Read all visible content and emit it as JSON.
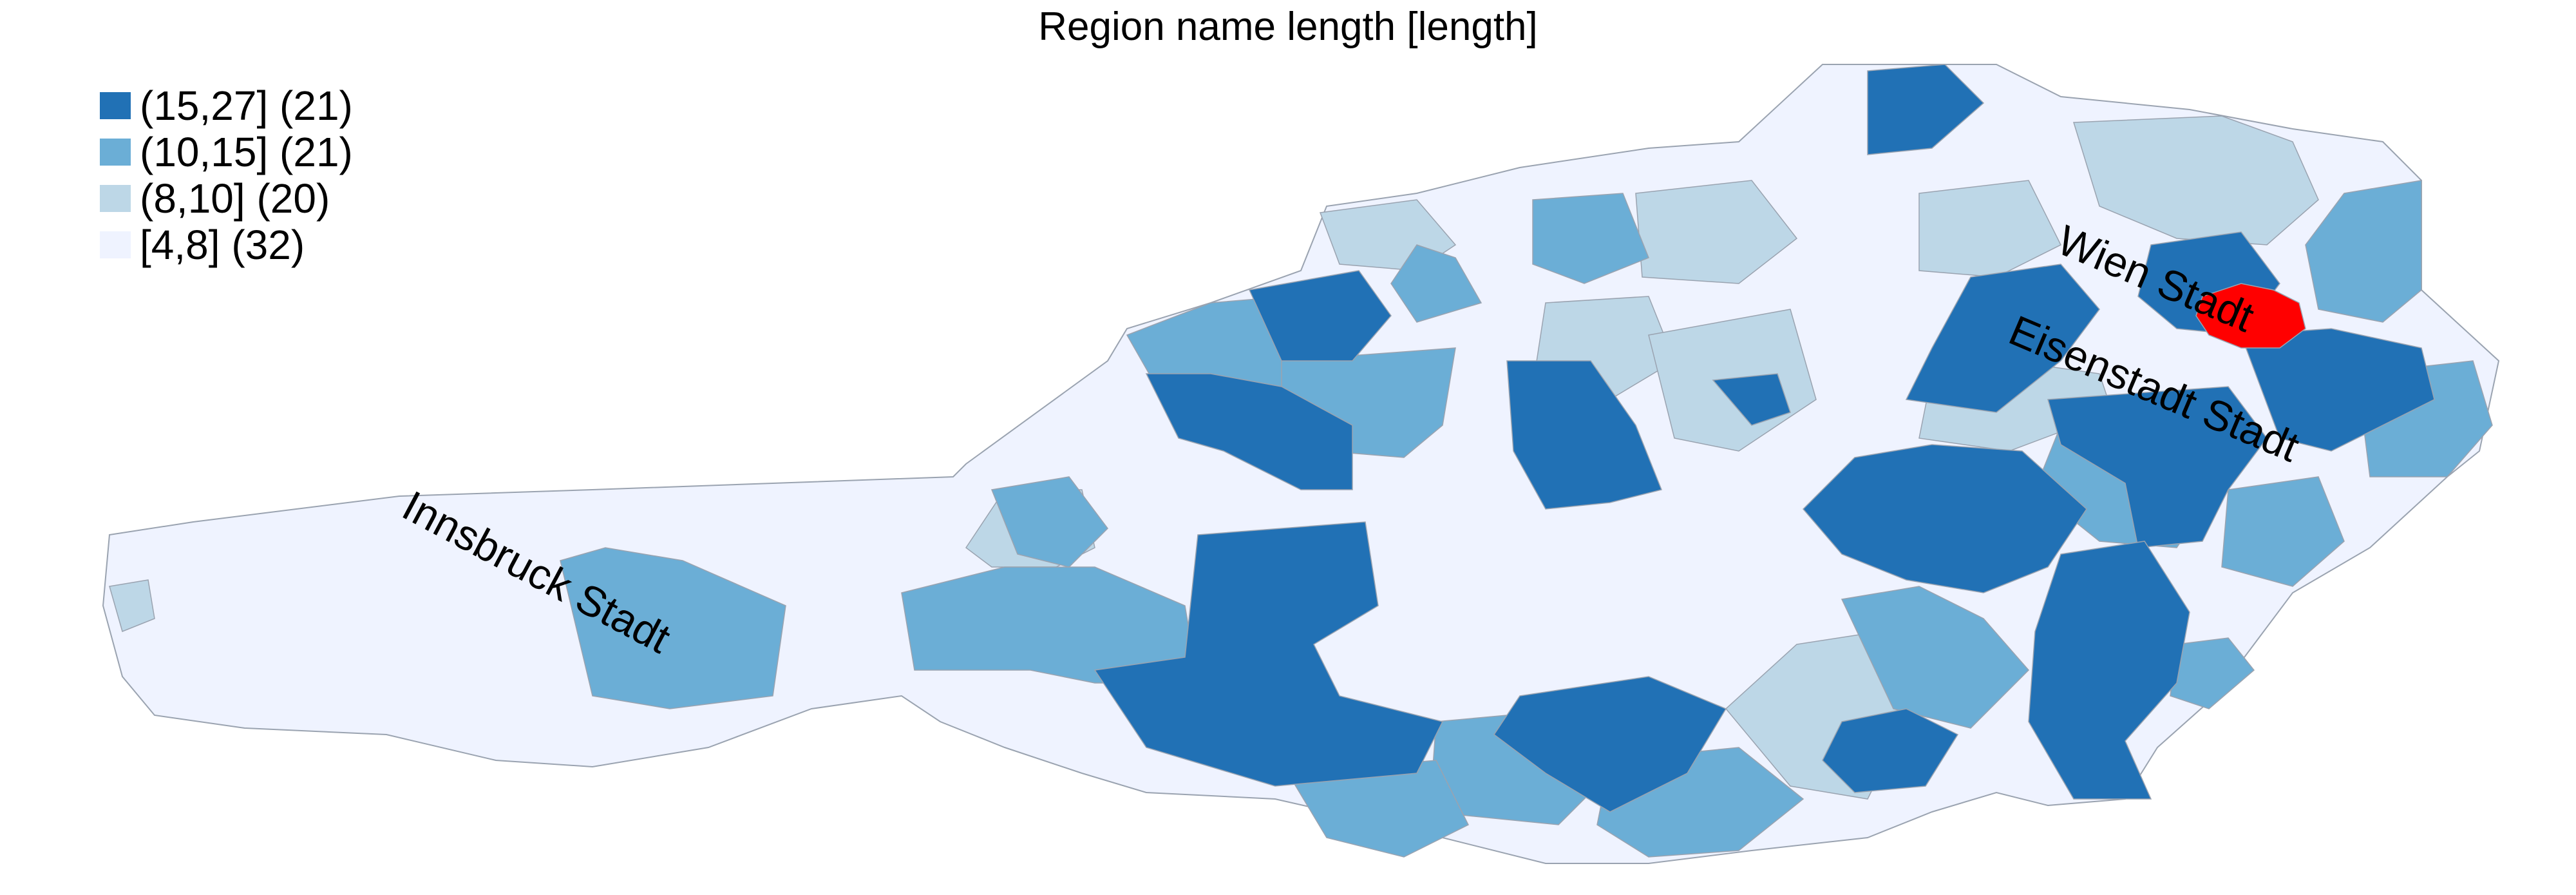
{
  "title": "Region name length [length]",
  "legend": [
    {
      "label": "(15,27] (21)",
      "color": "#2171b5"
    },
    {
      "label": "(10,15] (21)",
      "color": "#6baed6"
    },
    {
      "label": "(8,10] (20)",
      "color": "#bdd7e7"
    },
    {
      "label": "[4,8] (32)",
      "color": "#eff3ff"
    }
  ],
  "colors": {
    "border": "#9aa3b0",
    "highlight": "#ff0000"
  },
  "labels": {
    "innsbruck": "Innsbruck Stadt",
    "wien": "Wien Stadt",
    "eisenstadt": "Eisenstadt Stadt"
  }
}
